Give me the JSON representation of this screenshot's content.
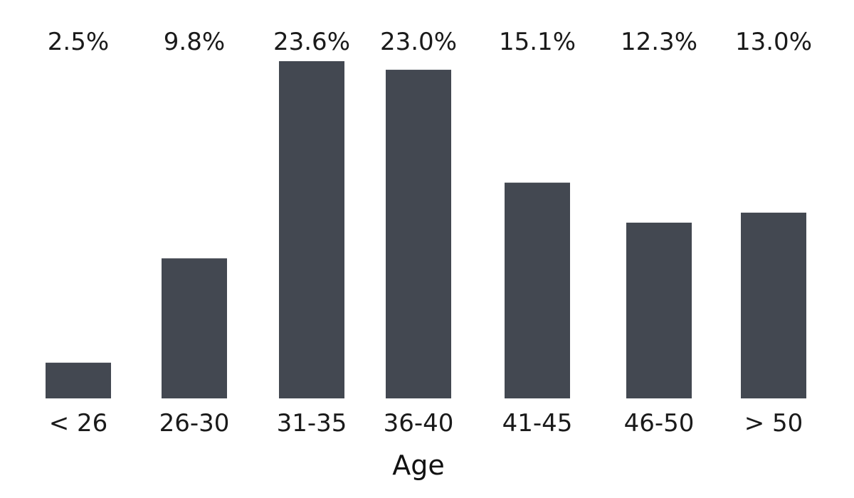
{
  "chart_data": {
    "type": "bar",
    "categories": [
      "< 26",
      "26-30",
      "31-35",
      "36-40",
      "41-45",
      "46-50",
      "> 50"
    ],
    "values": [
      2.5,
      9.8,
      23.6,
      23.0,
      15.1,
      12.3,
      13.0
    ],
    "value_labels": [
      "2.5%",
      "9.8%",
      "23.6%",
      "23.0%",
      "15.1%",
      "12.3%",
      "13.0%"
    ],
    "title": "",
    "xlabel": "Age",
    "ylabel": "",
    "ylim": [
      0,
      23.6
    ],
    "grid": false,
    "legend": "none",
    "bar_color": "#434851"
  }
}
